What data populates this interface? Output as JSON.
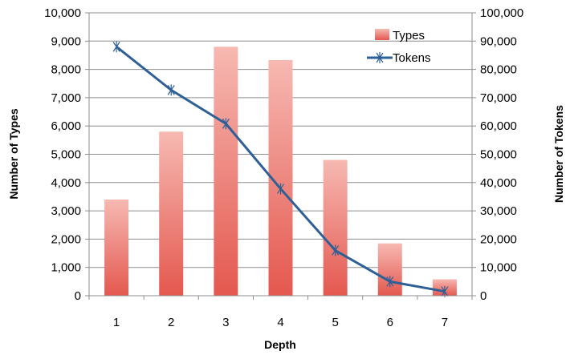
{
  "chart_data": {
    "type": "bar",
    "categories": [
      "1",
      "2",
      "3",
      "4",
      "5",
      "6",
      "7"
    ],
    "series": [
      {
        "name": "Types",
        "type": "bar",
        "axis": "left",
        "values": [
          3400,
          5800,
          8800,
          8330,
          4800,
          1850,
          580
        ],
        "color": "#e8605a"
      },
      {
        "name": "Tokens",
        "type": "line",
        "axis": "right",
        "values": [
          88000,
          72700,
          60800,
          37800,
          16000,
          5000,
          1500
        ],
        "color": "#2e5f97"
      }
    ],
    "xlabel": "Depth",
    "ylabel": "Number of Types",
    "y2label": "Number of Tokens",
    "ylim": [
      0,
      10000
    ],
    "y2lim": [
      0,
      100000
    ],
    "yticks": [
      "0",
      "1,000",
      "2,000",
      "3,000",
      "4,000",
      "5,000",
      "6,000",
      "7,000",
      "8,000",
      "9,000",
      "10,000"
    ],
    "y2ticks": [
      "0",
      "10,000",
      "20,000",
      "30,000",
      "40,000",
      "50,000",
      "60,000",
      "70,000",
      "80,000",
      "90,000",
      "100,000"
    ],
    "grid": true,
    "legend": "top-right"
  }
}
